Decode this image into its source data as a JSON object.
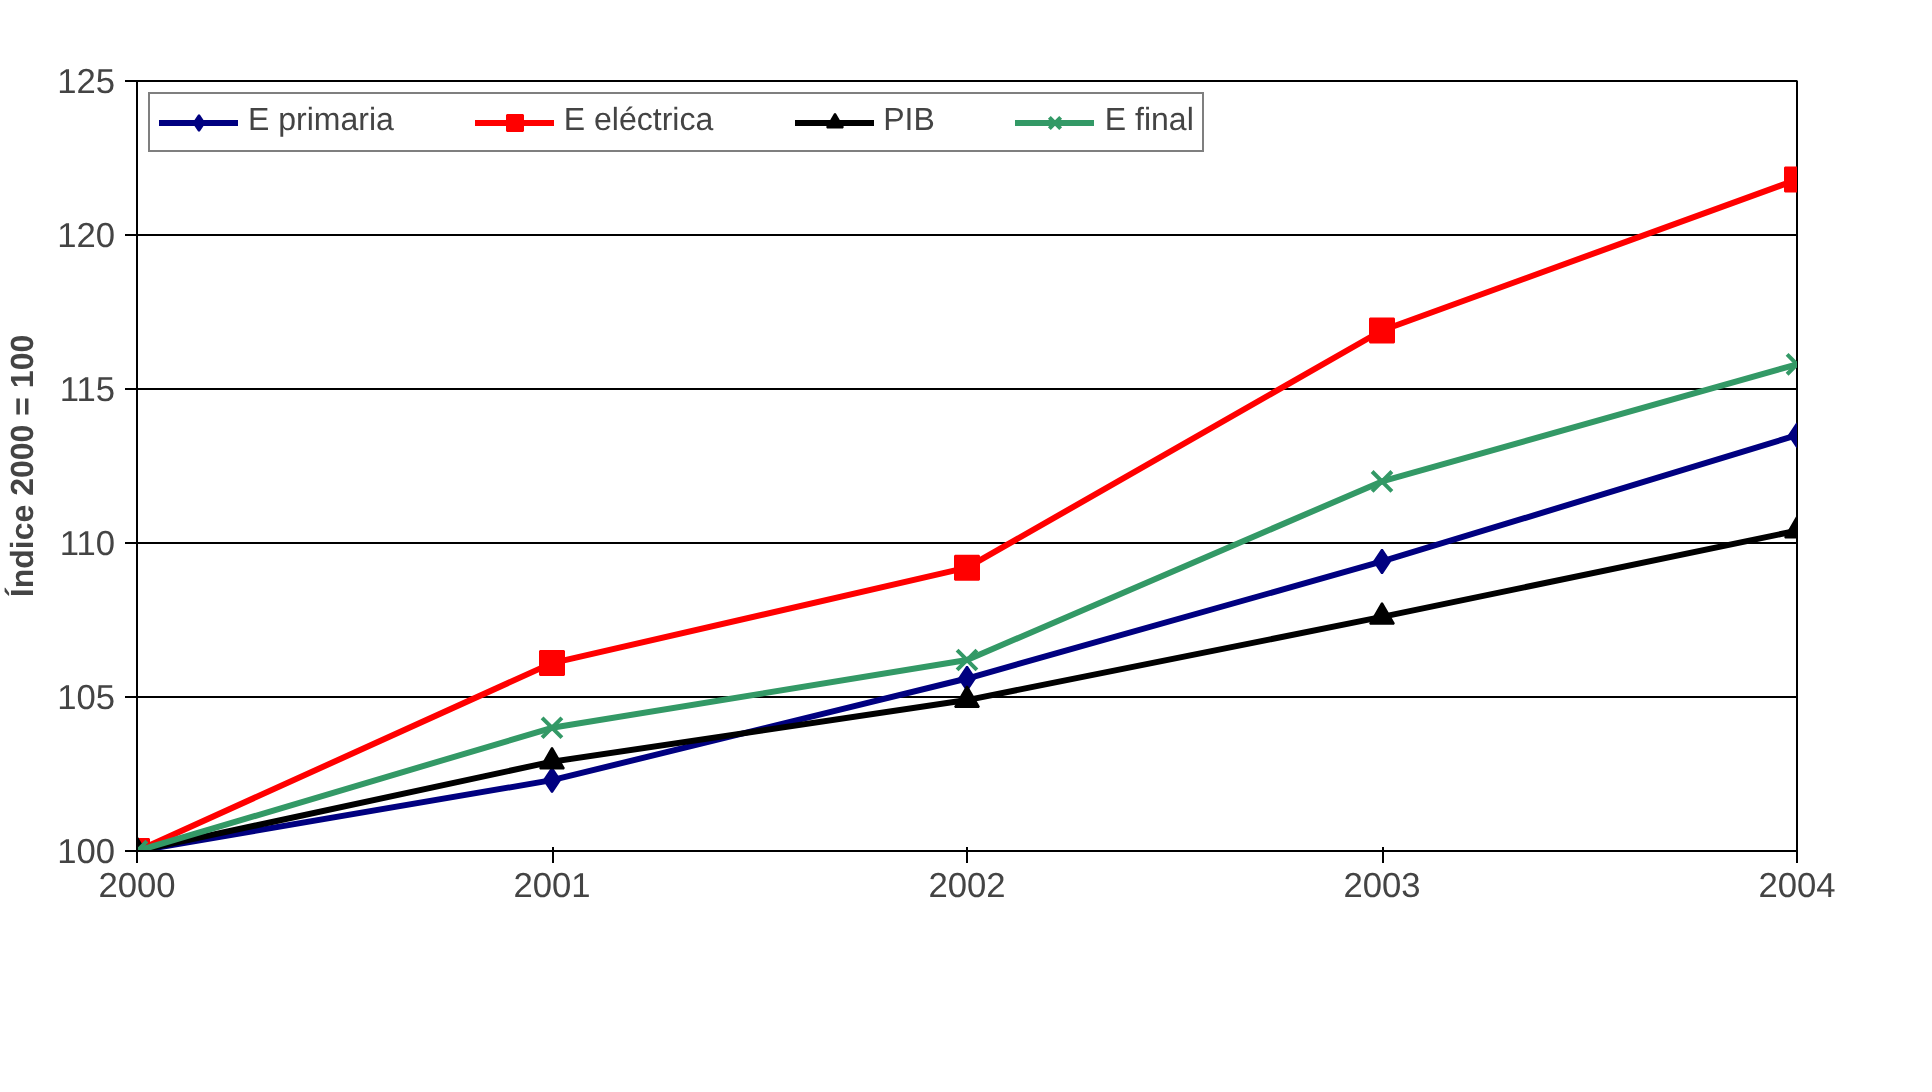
{
  "chart_data": {
    "type": "line",
    "ylabel": "Índice 2000 = 100",
    "x": [
      2000,
      2001,
      2002,
      2003,
      2004
    ],
    "xlim": [
      2000,
      2004
    ],
    "xticks": [
      2000,
      2001,
      2002,
      2003,
      2004
    ],
    "ylim": [
      100,
      125
    ],
    "yticks": [
      100,
      105,
      110,
      115,
      120,
      125
    ],
    "grid": "y",
    "legend": "top left",
    "line_style": "solid",
    "series": [
      {
        "name": "E primaria",
        "color": "#000080",
        "marker": "diamond",
        "values": [
          100,
          102.3,
          105.6,
          109.4,
          113.5
        ]
      },
      {
        "name": "E eléctrica",
        "color": "#ff0000",
        "marker": "square",
        "values": [
          100,
          106.1,
          109.2,
          116.9,
          121.8
        ]
      },
      {
        "name": "PIB",
        "color": "#000000",
        "marker": "triangle",
        "values": [
          100,
          102.9,
          104.9,
          107.6,
          110.4
        ]
      },
      {
        "name": "E final",
        "color": "#339966",
        "marker": "cross",
        "values": [
          100,
          104.0,
          106.2,
          112.0,
          115.8
        ]
      }
    ]
  }
}
